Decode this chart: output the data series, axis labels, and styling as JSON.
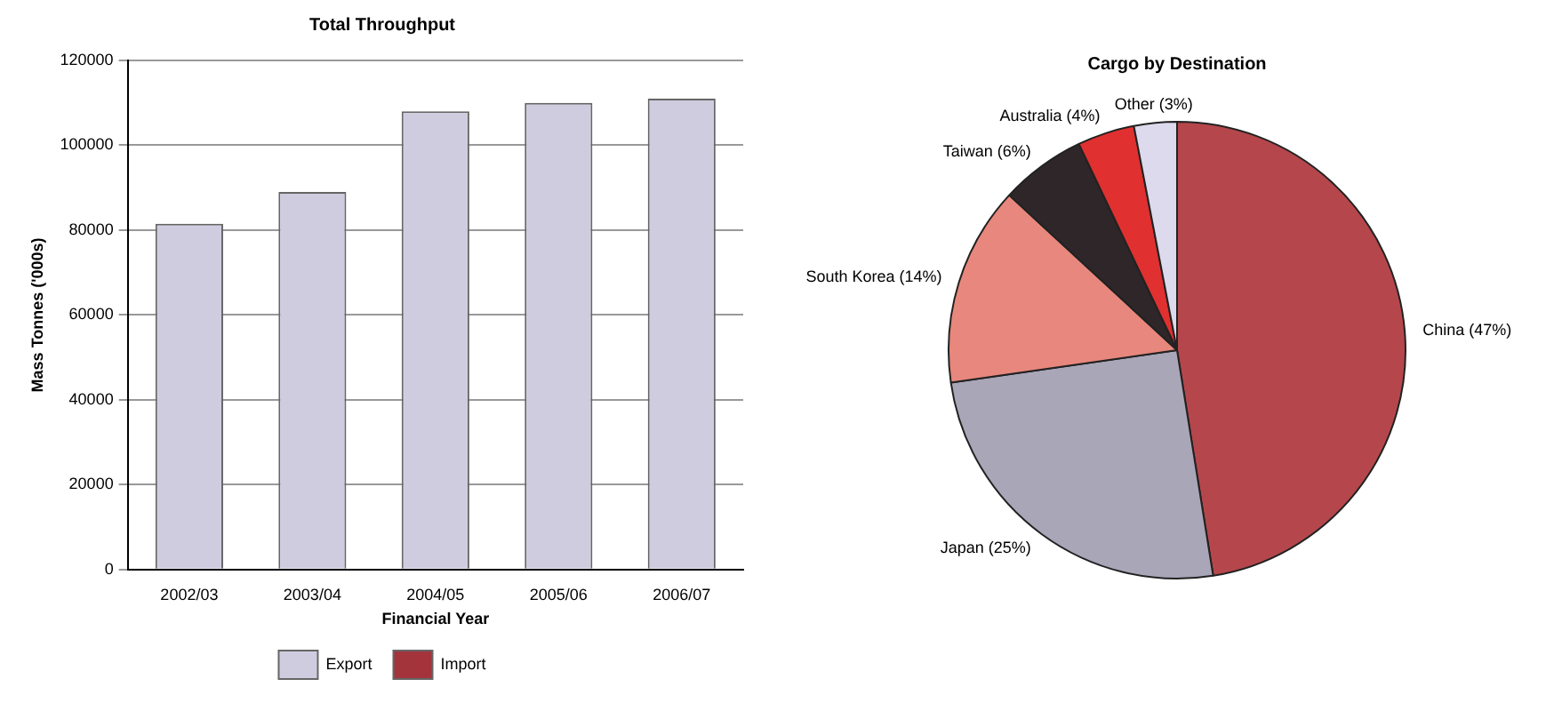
{
  "chart_data": [
    {
      "type": "bar",
      "title": "Total Throughput",
      "xlabel": "Financial Year",
      "ylabel": "Mass Tonnes ('000s)",
      "categories": [
        "2002/03",
        "2003/04",
        "2004/05",
        "2005/06",
        "2006/07"
      ],
      "series": [
        {
          "name": "Export",
          "color": "#d0cce0",
          "values": [
            81500,
            89000,
            108000,
            110000,
            111000
          ]
        },
        {
          "name": "Import",
          "color": "#a3343c",
          "values": [
            null,
            null,
            null,
            null,
            null
          ]
        }
      ],
      "ylim": [
        0,
        120000
      ],
      "yticks": [
        0,
        20000,
        40000,
        60000,
        80000,
        100000,
        120000
      ],
      "grid": "y",
      "legend": "bottom"
    },
    {
      "type": "pie",
      "title": "Cargo by Destination",
      "categories": [
        "China (47%)",
        "Japan (25%)",
        "South Korea (14%)",
        "Taiwan (6%)",
        "Australia (4%)",
        "Other (3%)"
      ],
      "values": [
        47,
        25,
        14,
        6,
        4,
        3
      ],
      "colors": [
        "#b5474c",
        "#a9a6b8",
        "#e8877d",
        "#2e2628",
        "#e03030",
        "#dcdaec"
      ]
    }
  ]
}
